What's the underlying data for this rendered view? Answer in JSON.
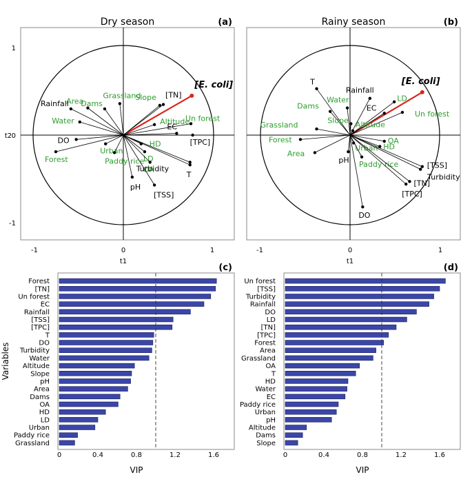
{
  "chart_data": [
    {
      "type": "scatter",
      "panel": "(a)",
      "title": "Dry season",
      "xlabel": "t1",
      "ylabel": "t2",
      "xlim": [
        -1.05,
        1.05
      ],
      "ylim": [
        -1.2,
        1.1
      ],
      "ticks": {
        "x": [
          "-1",
          "0",
          "1"
        ],
        "y": [
          "1",
          "0",
          "-1"
        ]
      },
      "points": [
        {
          "label": "[E. coli]",
          "x": 0.77,
          "y": 0.45,
          "color": "ecoli"
        },
        {
          "label": "[TN]",
          "x": 0.45,
          "y": 0.35,
          "color": "black"
        },
        {
          "label": "Slope",
          "x": 0.41,
          "y": 0.34,
          "color": "green"
        },
        {
          "label": "Grassland",
          "x": -0.04,
          "y": 0.36,
          "color": "green"
        },
        {
          "label": "Dams",
          "x": -0.21,
          "y": 0.3,
          "color": "green"
        },
        {
          "label": "Area",
          "x": -0.4,
          "y": 0.31,
          "color": "green"
        },
        {
          "label": "Rainfall",
          "x": -0.59,
          "y": 0.3,
          "color": "black"
        },
        {
          "label": "Water",
          "x": -0.49,
          "y": 0.15,
          "color": "green"
        },
        {
          "label": "Un forest",
          "x": 0.76,
          "y": 0.13,
          "color": "green"
        },
        {
          "label": "Altitude",
          "x": 0.35,
          "y": 0.12,
          "color": "green"
        },
        {
          "label": "EC",
          "x": 0.6,
          "y": 0.02,
          "color": "black"
        },
        {
          "label": "[TPC]",
          "x": 0.78,
          "y": 0.0,
          "color": "black"
        },
        {
          "label": "DO",
          "x": -0.53,
          "y": -0.05,
          "color": "black"
        },
        {
          "label": "Urban",
          "x": -0.2,
          "y": -0.1,
          "color": "green"
        },
        {
          "label": "Forest",
          "x": -0.76,
          "y": -0.19,
          "color": "green"
        },
        {
          "label": "HD",
          "x": 0.2,
          "y": -0.1,
          "color": "green"
        },
        {
          "label": "LD",
          "x": 0.24,
          "y": -0.19,
          "color": "green"
        },
        {
          "label": "Paddy rice",
          "x": -0.1,
          "y": -0.2,
          "color": "green"
        },
        {
          "label": "OA",
          "x": 0.3,
          "y": -0.31,
          "color": "green"
        },
        {
          "label": "Turbidity",
          "x": 0.75,
          "y": -0.31,
          "color": "black"
        },
        {
          "label": "T",
          "x": 0.75,
          "y": -0.34,
          "color": "black"
        },
        {
          "label": "pH",
          "x": 0.1,
          "y": -0.48,
          "color": "black"
        },
        {
          "label": "[TSS]",
          "x": 0.35,
          "y": -0.57,
          "color": "black"
        }
      ]
    },
    {
      "type": "scatter",
      "panel": "(b)",
      "title": "Rainy season",
      "xlabel": "t1",
      "ylabel": "",
      "xlim": [
        -1.05,
        1.05
      ],
      "ylim": [
        -1.2,
        1.1
      ],
      "ticks": {
        "x": [
          "-1",
          "0",
          "1"
        ],
        "y": []
      },
      "points": [
        {
          "label": "[E. coli]",
          "x": 0.8,
          "y": 0.49,
          "color": "ecoli"
        },
        {
          "label": "T",
          "x": -0.37,
          "y": 0.53,
          "color": "black"
        },
        {
          "label": "Rainfall",
          "x": 0.22,
          "y": 0.42,
          "color": "black"
        },
        {
          "label": "LD",
          "x": 0.49,
          "y": 0.38,
          "color": "green"
        },
        {
          "label": "Water",
          "x": -0.03,
          "y": 0.31,
          "color": "green"
        },
        {
          "label": "Dams",
          "x": -0.22,
          "y": 0.27,
          "color": "green"
        },
        {
          "label": "EC",
          "x": 0.38,
          "y": 0.25,
          "color": "black"
        },
        {
          "label": "Un forest",
          "x": 0.58,
          "y": 0.26,
          "color": "green"
        },
        {
          "label": "Slope",
          "x": 0.01,
          "y": 0.13,
          "color": "green"
        },
        {
          "label": "Grassland",
          "x": -0.37,
          "y": 0.07,
          "color": "green"
        },
        {
          "label": "Altitude",
          "x": 0.03,
          "y": 0.05,
          "color": "green"
        },
        {
          "label": "Forest",
          "x": -0.55,
          "y": -0.05,
          "color": "green"
        },
        {
          "label": "OA",
          "x": 0.38,
          "y": -0.07,
          "color": "green"
        },
        {
          "label": "Urban",
          "x": 0.04,
          "y": -0.09,
          "color": "green"
        },
        {
          "label": "HD",
          "x": 0.33,
          "y": -0.13,
          "color": "green"
        },
        {
          "label": "Area",
          "x": -0.39,
          "y": -0.2,
          "color": "green"
        },
        {
          "label": "pH",
          "x": -0.02,
          "y": -0.19,
          "color": "black"
        },
        {
          "label": "Paddy rice",
          "x": 0.13,
          "y": -0.25,
          "color": "green"
        },
        {
          "label": "[TSS]",
          "x": 0.8,
          "y": -0.36,
          "color": "black"
        },
        {
          "label": "Turbidity",
          "x": 0.78,
          "y": -0.39,
          "color": "black"
        },
        {
          "label": "[TN]",
          "x": 0.66,
          "y": -0.53,
          "color": "black"
        },
        {
          "label": "[TPC]",
          "x": 0.62,
          "y": -0.56,
          "color": "black"
        },
        {
          "label": "DO",
          "x": 0.14,
          "y": -0.82,
          "color": "black"
        }
      ]
    },
    {
      "type": "bar",
      "panel": "(c)",
      "orientation": "horizontal",
      "xlabel": "VIP",
      "ylabel": "Variables",
      "xlim": [
        0,
        1.75
      ],
      "xticks": [
        "0",
        "0.4",
        "0.8",
        "1.2",
        "1.6"
      ],
      "reference_line": 1.0,
      "categories": [
        "Forest",
        "[TN]",
        "Un forest",
        "EC",
        "Rainfall",
        "[TSS]",
        "[TPC]",
        "T",
        "DO",
        "Turbidity",
        "Water",
        "Altitude",
        "Slope",
        "pH",
        "Area",
        "Dams",
        "OA",
        "HD",
        "LD",
        "Urban",
        "Paddy rice",
        "Grassland"
      ],
      "values": [
        1.63,
        1.62,
        1.57,
        1.5,
        1.36,
        1.18,
        1.17,
        0.98,
        0.97,
        0.96,
        0.93,
        0.78,
        0.75,
        0.74,
        0.71,
        0.63,
        0.61,
        0.48,
        0.4,
        0.37,
        0.19,
        0.16
      ]
    },
    {
      "type": "bar",
      "panel": "(d)",
      "orientation": "horizontal",
      "xlabel": "VIP",
      "ylabel": "",
      "xlim": [
        0,
        1.75
      ],
      "xticks": [
        "0",
        "0.4",
        "0.8",
        "1.2",
        "1.6"
      ],
      "reference_line": 1.0,
      "categories": [
        "Un forest",
        "[TSS]",
        "Turbidity",
        "Rainfall",
        "DO",
        "LD",
        "[TN]",
        "[TPC]",
        "Forest",
        "Area",
        "Grassland",
        "OA",
        "T",
        "HD",
        "Water",
        "EC",
        "Paddy rice",
        "Urban",
        "pH",
        "Altitude",
        "Dams",
        "Slope"
      ],
      "values": [
        1.66,
        1.6,
        1.54,
        1.49,
        1.36,
        1.26,
        1.15,
        1.07,
        1.02,
        0.94,
        0.91,
        0.77,
        0.73,
        0.65,
        0.64,
        0.62,
        0.55,
        0.53,
        0.48,
        0.22,
        0.18,
        0.13
      ]
    }
  ]
}
